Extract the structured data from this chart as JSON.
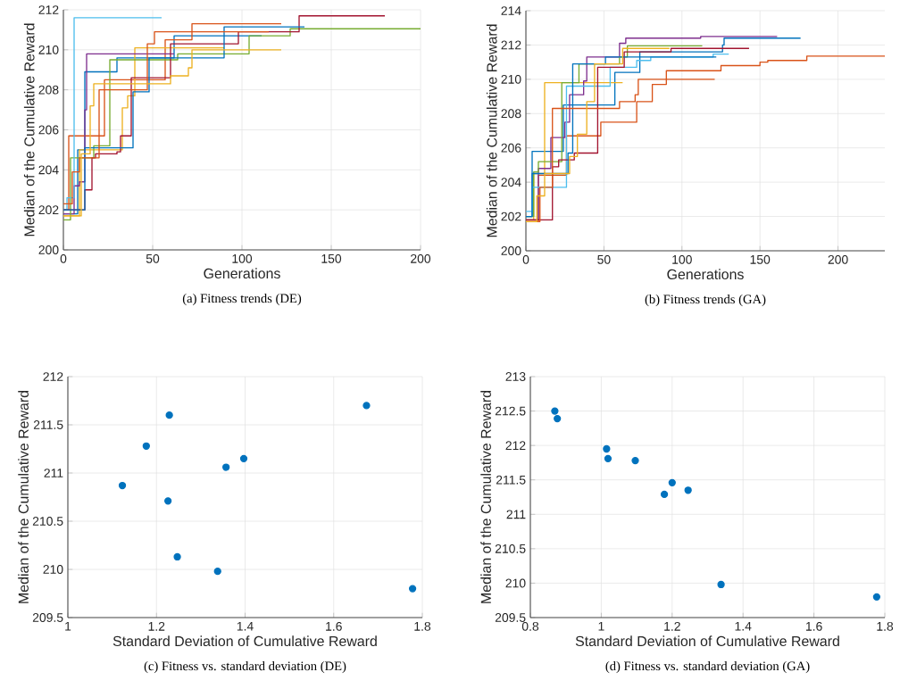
{
  "chart_data": [
    {
      "type": "step",
      "title": "(a) Fitness trends (DE)",
      "xlabel": "Generations",
      "ylabel": "Median of the Cumulative Reward",
      "xlim": [
        0,
        200
      ],
      "ylim": [
        200,
        212
      ],
      "xticks": [
        0,
        50,
        100,
        150,
        200
      ],
      "yticks": [
        200,
        202,
        204,
        206,
        208,
        210,
        212
      ],
      "grid": true,
      "series": [
        {
          "color": "#0072bd",
          "x": [
            0,
            8,
            12,
            30,
            62,
            111
          ],
          "values": [
            201.8,
            205,
            208.9,
            209.6,
            210.7,
            210.7
          ]
        },
        {
          "color": "#d95319",
          "x": [
            0,
            3,
            23,
            57,
            72,
            122
          ],
          "values": [
            202,
            205.7,
            208.5,
            210.5,
            211.3,
            211.3
          ]
        },
        {
          "color": "#edb120",
          "x": [
            0,
            9,
            33,
            36,
            40,
            90
          ],
          "values": [
            201.7,
            205,
            207.1,
            207.7,
            210.1,
            210.1
          ]
        },
        {
          "color": "#7e2f8e",
          "x": [
            0,
            6,
            9,
            12,
            13,
            62
          ],
          "values": [
            201.8,
            203.2,
            203.4,
            207,
            209.8,
            209.8
          ]
        },
        {
          "color": "#77ac30",
          "x": [
            0,
            4,
            17,
            26,
            64,
            104,
            127,
            200
          ],
          "values": [
            201.5,
            204.6,
            205.2,
            209.5,
            209.8,
            210.7,
            211.05,
            211.05
          ]
        },
        {
          "color": "#4dbeee",
          "x": [
            0,
            2,
            6,
            55
          ],
          "values": [
            202,
            202.6,
            211.6,
            211.6
          ]
        },
        {
          "color": "#a2142f",
          "x": [
            0,
            12,
            16,
            18,
            30,
            32,
            38,
            60,
            98,
            132,
            180
          ],
          "values": [
            202,
            203,
            204.6,
            204.8,
            204.9,
            205.7,
            208.6,
            210.3,
            210.9,
            211.7,
            211.7
          ]
        },
        {
          "color": "#0072bd",
          "x": [
            0,
            12,
            39,
            48,
            90,
            135
          ],
          "values": [
            202,
            205.1,
            207.9,
            209.6,
            211.15,
            211.15
          ]
        },
        {
          "color": "#d95319",
          "x": [
            0,
            5,
            9,
            20,
            47,
            51,
            115
          ],
          "values": [
            202.3,
            203.9,
            204.6,
            208,
            210.3,
            210.9,
            210.9
          ]
        },
        {
          "color": "#edb120",
          "x": [
            0,
            10,
            15,
            17,
            60,
            70,
            72,
            122
          ],
          "values": [
            201.7,
            204.8,
            207.2,
            208.3,
            208.7,
            209.1,
            210,
            210
          ]
        }
      ]
    },
    {
      "type": "step",
      "title": "(b) Fitness trends (GA)",
      "xlabel": "Generations",
      "ylabel": "Median of the Cumulative Reward",
      "xlim": [
        0,
        230
      ],
      "ylim": [
        200,
        214
      ],
      "xticks": [
        0,
        50,
        100,
        150,
        200
      ],
      "yticks": [
        200,
        202,
        204,
        206,
        208,
        210,
        212,
        214
      ],
      "grid": true,
      "series": [
        {
          "color": "#0072bd",
          "x": [
            0,
            4,
            24,
            57,
            73,
            126,
            127,
            176
          ],
          "values": [
            202,
            205.8,
            208.5,
            210.4,
            211.6,
            212,
            212.4,
            212.4
          ]
        },
        {
          "color": "#d95319",
          "x": [
            0,
            8,
            26,
            48,
            71,
            81,
            90,
            125,
            150,
            155,
            180,
            230
          ],
          "values": [
            201.7,
            204.4,
            206.7,
            207.5,
            208.7,
            209.7,
            210.5,
            210.8,
            211,
            211.1,
            211.35,
            211.35
          ]
        },
        {
          "color": "#edb120",
          "x": [
            0,
            5,
            12,
            62
          ],
          "values": [
            201.8,
            204.5,
            209.8,
            209.8
          ]
        },
        {
          "color": "#7e2f8e",
          "x": [
            0,
            8,
            16,
            25,
            28,
            37,
            39,
            60,
            64,
            112,
            161
          ],
          "values": [
            201.8,
            204.8,
            206.6,
            207.5,
            209.1,
            209.9,
            211.3,
            212.1,
            212.4,
            212.5,
            212.5
          ]
        },
        {
          "color": "#77ac30",
          "x": [
            0,
            5,
            8,
            23,
            34,
            60,
            65,
            113
          ],
          "values": [
            202,
            204.6,
            205.2,
            209.8,
            210.9,
            211.3,
            211.95,
            211.95
          ]
        },
        {
          "color": "#4dbeee",
          "x": [
            0,
            4,
            26,
            54,
            71,
            80,
            120,
            130
          ],
          "values": [
            202.3,
            203.7,
            209.6,
            210.7,
            211.1,
            211.3,
            211.47,
            211.47
          ]
        },
        {
          "color": "#a2142f",
          "x": [
            0,
            17,
            21,
            31,
            46,
            63,
            93,
            143
          ],
          "values": [
            201.8,
            204.9,
            205.3,
            205.7,
            210.7,
            211.6,
            211.8,
            211.8
          ]
        },
        {
          "color": "#0072bd",
          "x": [
            0,
            4,
            27,
            30,
            51,
            122
          ],
          "values": [
            202,
            204.5,
            205.7,
            210.9,
            211.3,
            211.3
          ]
        },
        {
          "color": "#d95319",
          "x": [
            0,
            9,
            17,
            60,
            70,
            72,
            121
          ],
          "values": [
            201.7,
            203.7,
            208.3,
            208.7,
            209.1,
            210,
            210
          ]
        },
        {
          "color": "#edb120",
          "x": [
            0,
            7,
            12,
            28,
            33,
            39,
            44,
            62,
            92
          ],
          "values": [
            201.7,
            203.2,
            204.5,
            205.5,
            206.8,
            208.7,
            210.9,
            211.8,
            211.8
          ]
        }
      ]
    },
    {
      "type": "scatter",
      "title": "(c) Fitness vs. standard deviation (DE)",
      "xlabel": "Standard Deviation of Cumulative Reward",
      "ylabel": "Median of the Cumulative Reward",
      "xlim": [
        1,
        1.8
      ],
      "ylim": [
        209.5,
        212
      ],
      "xticks": [
        1,
        1.2,
        1.4,
        1.6,
        1.8
      ],
      "yticks": [
        209.5,
        210,
        210.5,
        211,
        211.5,
        212
      ],
      "grid": true,
      "marker": "circle",
      "color": "#0072bd",
      "x": [
        1.123,
        1.177,
        1.229,
        1.226,
        1.247,
        1.338,
        1.357,
        1.397,
        1.674,
        1.778
      ],
      "values": [
        210.87,
        211.28,
        211.6,
        210.71,
        210.13,
        209.98,
        211.06,
        211.15,
        211.7,
        209.8
      ]
    },
    {
      "type": "scatter",
      "title": "(d) Fitness vs. standard deviation (GA)",
      "xlabel": "Standard Deviation of Cumulative Reward",
      "ylabel": "Median of the Cumulative Reward",
      "xlim": [
        0.8,
        1.8
      ],
      "ylim": [
        209.5,
        213
      ],
      "xticks": [
        0.8,
        1,
        1.2,
        1.4,
        1.6,
        1.8
      ],
      "yticks": [
        209.5,
        210,
        210.5,
        211,
        211.5,
        212,
        212.5,
        213
      ],
      "grid": true,
      "marker": "circle",
      "color": "#0072bd",
      "x": [
        0.869,
        0.876,
        1.015,
        1.019,
        1.096,
        1.2,
        1.178,
        1.245,
        1.338,
        1.777
      ],
      "values": [
        212.5,
        212.39,
        211.95,
        211.81,
        211.78,
        211.46,
        211.29,
        211.35,
        209.98,
        209.8
      ]
    }
  ]
}
